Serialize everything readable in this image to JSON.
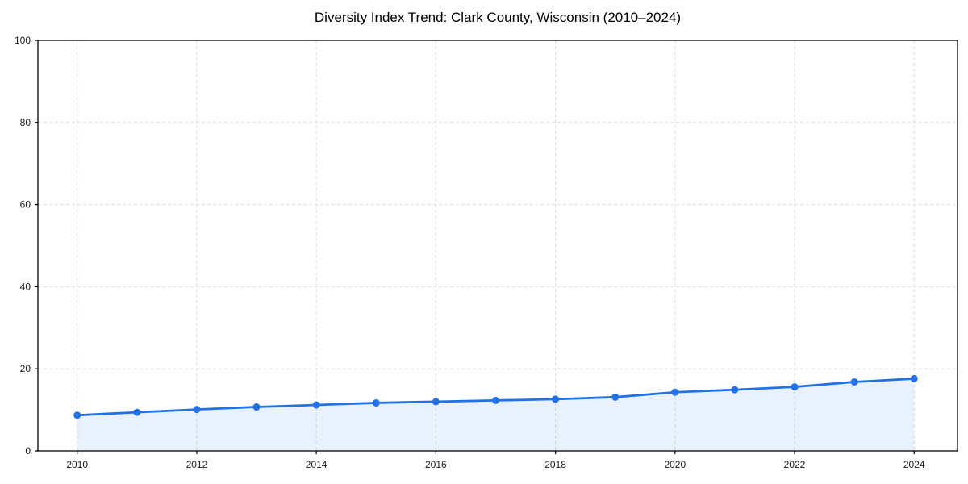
{
  "chart_data": {
    "type": "line",
    "title": "Diversity Index Trend: Clark County, Wisconsin (2010–2024)",
    "x": [
      2010,
      2011,
      2012,
      2013,
      2014,
      2015,
      2016,
      2017,
      2018,
      2019,
      2020,
      2021,
      2022,
      2023,
      2024
    ],
    "series": [
      {
        "name": "Diversity Index",
        "values": [
          8.7,
          9.4,
          10.1,
          10.7,
          11.2,
          11.7,
          12.0,
          12.3,
          12.6,
          13.1,
          14.3,
          14.9,
          15.6,
          16.8,
          17.6
        ]
      }
    ],
    "xlabel": "",
    "ylabel": "",
    "ylim": [
      0,
      100
    ],
    "yticks": [
      0,
      20,
      40,
      60,
      80,
      100
    ],
    "xticks": [
      2010,
      2012,
      2014,
      2016,
      2018,
      2020,
      2022,
      2024
    ],
    "grid": true,
    "grid_style": "dashed",
    "legend": false,
    "marker": "circle",
    "area_fill": true,
    "colors": {
      "line": "#2272e6",
      "marker": "#2272e6",
      "area": "rgba(34,114,230,0.10)",
      "grid": "#dedede",
      "axis": "#000000",
      "tick_label": "#1a1a1a",
      "title": "#000000",
      "background": "#ffffff"
    }
  }
}
